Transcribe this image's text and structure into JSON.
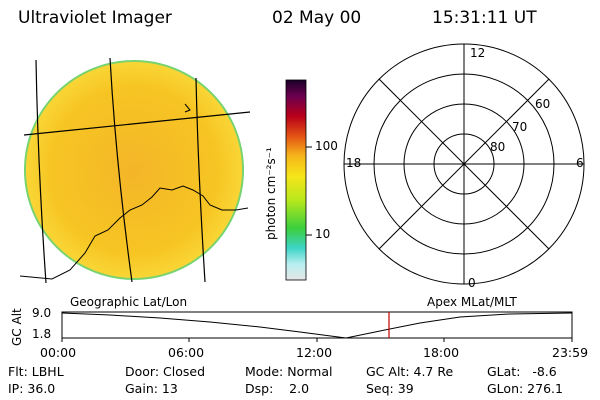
{
  "header": {
    "instrument": "Ultraviolet Imager",
    "date": "02 May 00",
    "time": "15:31:11 UT"
  },
  "colors": {
    "disk_fill": "#f5c21a",
    "disk_edge": "#6fd46f",
    "grid_line": "#000000",
    "marker_red": "#c00000"
  },
  "colorbar": {
    "unit_label": "photon cm⁻²s⁻¹",
    "ticks": [
      "100",
      "10"
    ]
  },
  "labels": {
    "left_panel": "Geographic Lat/Lon",
    "right_panel": "Apex MLat/MLT"
  },
  "polar": {
    "mlt_labels": {
      "top": "12",
      "left": "18",
      "right": "6",
      "bottom": "0"
    },
    "lat_labels": [
      "60",
      "70",
      "80"
    ]
  },
  "altitude_plot": {
    "axis_label": "GC Alt",
    "y_top": "9.0",
    "y_bottom": "1.8",
    "x_ticks": [
      "00:00",
      "06:00",
      "12:00",
      "18:00",
      "23:59"
    ]
  },
  "status": {
    "flt": "Flt: LBHL",
    "ip": "IP: 36.0",
    "door": "Door: Closed",
    "gain": "Gain: 13",
    "mode": "Mode: Normal",
    "dsp": "Dsp:    2.0",
    "gcalt": "GC Alt: 4.7 Re",
    "seq": "Seq: 39",
    "glat": "GLat:   -8.6",
    "glon": "GLon: 276.1"
  }
}
